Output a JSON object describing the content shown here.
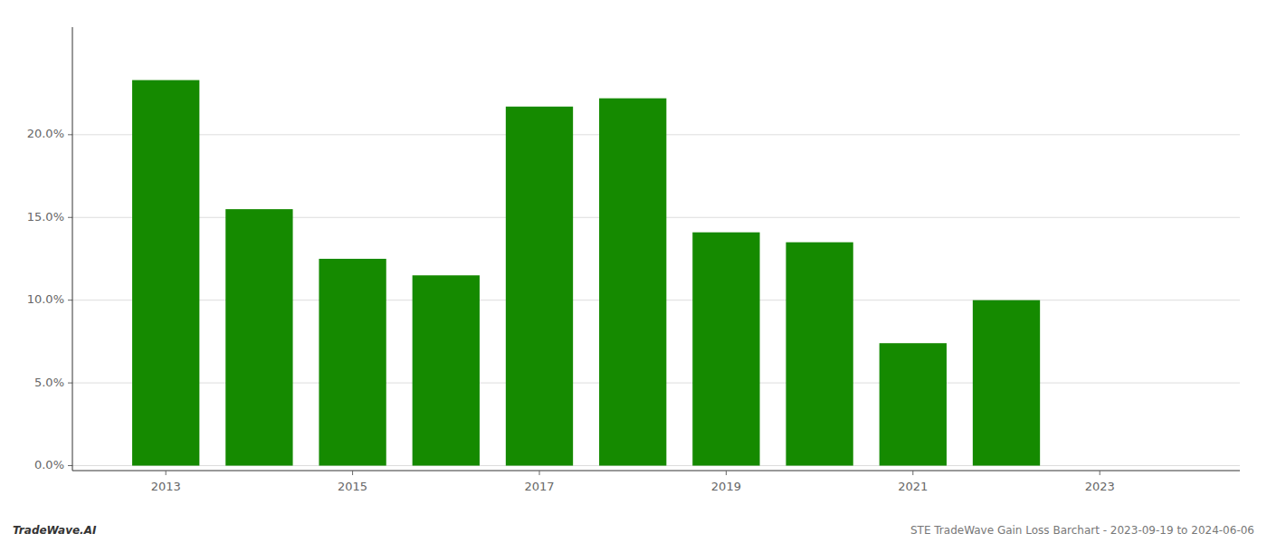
{
  "chart_data": {
    "type": "bar",
    "x": [
      2013,
      2014,
      2015,
      2016,
      2017,
      2018,
      2019,
      2020,
      2021,
      2022
    ],
    "values": [
      0.233,
      0.155,
      0.125,
      0.115,
      0.217,
      0.222,
      0.141,
      0.135,
      0.074,
      0.1
    ],
    "color": "#158a00",
    "xlim": [
      2012.0,
      2024.5
    ],
    "xticks": [
      2013,
      2015,
      2017,
      2019,
      2021,
      2023
    ],
    "ylim": [
      -0.003,
      0.265
    ],
    "yticks": [
      {
        "value": 0.0,
        "label": "0.0%"
      },
      {
        "value": 0.05,
        "label": "5.0%"
      },
      {
        "value": 0.1,
        "label": "10.0%"
      },
      {
        "value": 0.15,
        "label": "15.0%"
      },
      {
        "value": 0.2,
        "label": "20.0%"
      }
    ],
    "grid": true,
    "annotations": [
      "TradeWave.AI",
      "STE TradeWave Gain Loss Barchart - 2023-09-19 to 2024-06-06"
    ]
  }
}
